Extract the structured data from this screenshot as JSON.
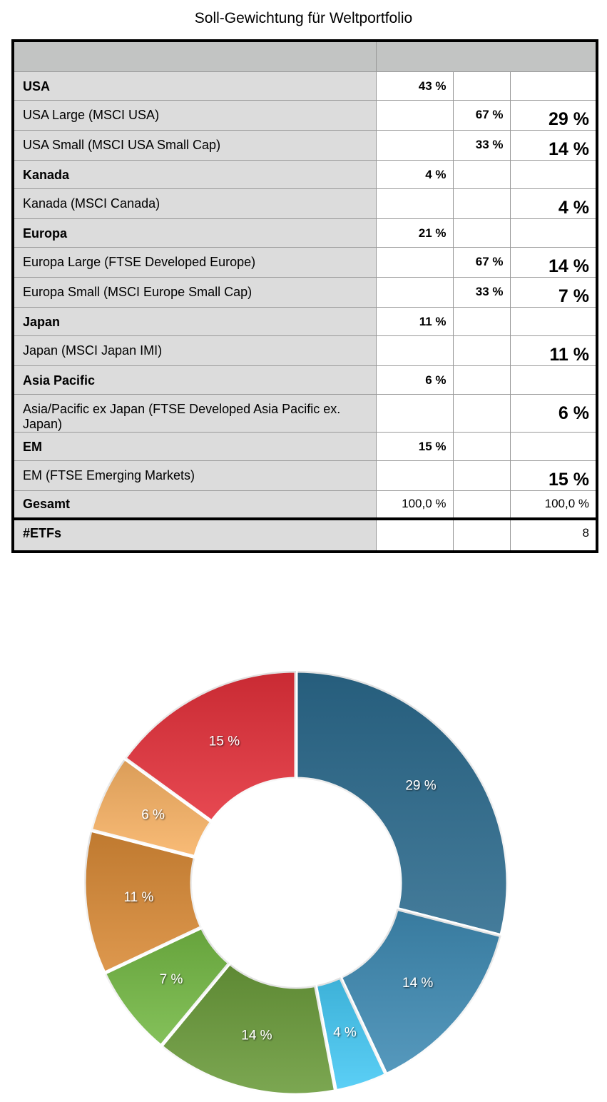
{
  "title": "Soll-Gewichtung für Weltportfolio",
  "table": {
    "rows": [
      {
        "label": "USA",
        "region": "43 %"
      },
      {
        "label": "USA Large (MSCI USA)",
        "split": "67 %",
        "weight": "29 %"
      },
      {
        "label": "USA Small (MSCI USA Small Cap)",
        "split": "33 %",
        "weight": "14 %"
      },
      {
        "label": "Kanada",
        "region": "4 %"
      },
      {
        "label": "Kanada (MSCI Canada)",
        "weight": "4 %"
      },
      {
        "label": "Europa",
        "region": "21 %"
      },
      {
        "label": "Europa Large (FTSE Developed Europe)",
        "split": "67 %",
        "weight": "14 %"
      },
      {
        "label": "Europa Small (MSCI Europe Small Cap)",
        "split": "33 %",
        "weight": "7 %"
      },
      {
        "label": "Japan",
        "region": "11 %"
      },
      {
        "label": "Japan (MSCI Japan IMI)",
        "weight": "11 %"
      },
      {
        "label": "Asia Pacific",
        "region": "6 %"
      },
      {
        "label": "Asia/Pacific ex Japan (FTSE Developed Asia Pacific ex. Japan)",
        "weight": "6 %"
      },
      {
        "label": "EM",
        "region": "15 %"
      },
      {
        "label": "EM (FTSE Emerging Markets)",
        "weight": "15 %"
      }
    ],
    "footer_rows": [
      {
        "label": "Gesamt",
        "region": "100,0 %",
        "weight": "100,0 %"
      },
      {
        "label": "#ETFs",
        "weight": "8"
      }
    ]
  },
  "chart_data": {
    "type": "donut",
    "values": [
      29,
      14,
      4,
      14,
      7,
      11,
      6,
      15
    ],
    "value_labels": [
      "29 %",
      "14 %",
      "4 %",
      "14 %",
      "7 %",
      "11 %",
      "6 %",
      "15 %"
    ],
    "colors": [
      "#2b6a8d",
      "#3f8bb4",
      "#45c9f5",
      "#6a9b3a",
      "#74b944",
      "#d98a36",
      "#f8b264",
      "#e4303a"
    ]
  }
}
